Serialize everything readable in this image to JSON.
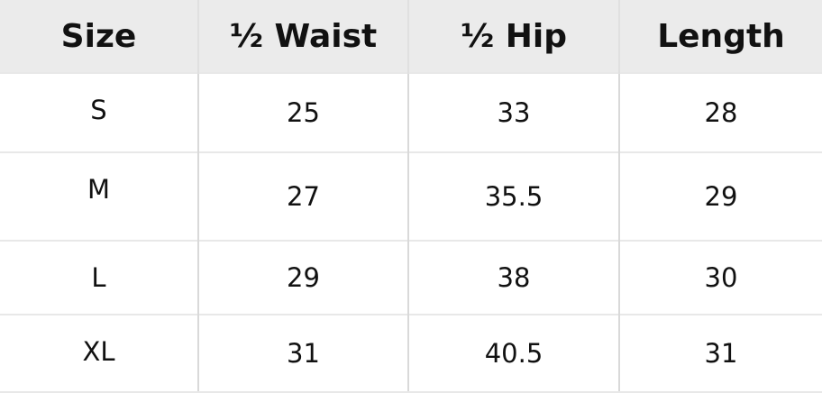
{
  "table": {
    "headers": [
      "Size",
      "½ Waist",
      "½ Hip",
      "Length"
    ],
    "rows": [
      [
        "S",
        "25",
        "33",
        "28"
      ],
      [
        "M",
        "27",
        "35.5",
        "29"
      ],
      [
        "L",
        "29",
        "38",
        "30"
      ],
      [
        "XL",
        "31",
        "40.5",
        "31"
      ]
    ]
  }
}
